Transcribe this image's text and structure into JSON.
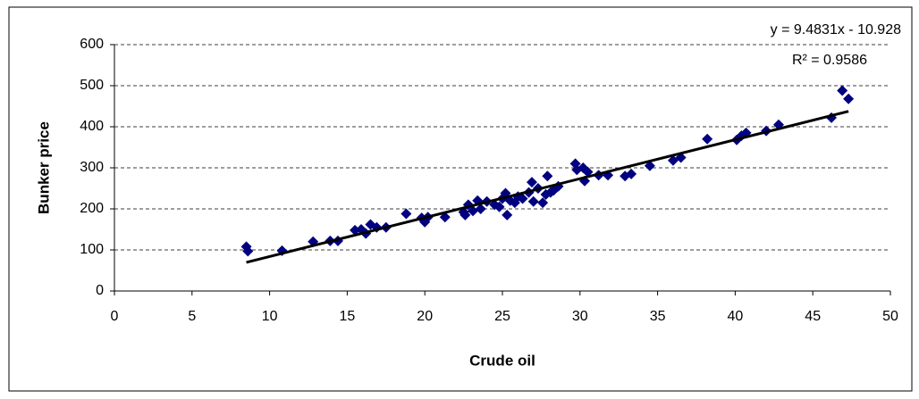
{
  "chart_data": {
    "type": "scatter",
    "x_label": "Crude oil",
    "y_label": "Bunker price",
    "xlim": [
      0,
      50
    ],
    "ylim": [
      0,
      600
    ],
    "xticks": [
      0,
      5,
      10,
      15,
      20,
      25,
      30,
      35,
      40,
      45,
      50
    ],
    "yticks": [
      0,
      100,
      200,
      300,
      400,
      500,
      600
    ],
    "grid": true,
    "color": "#000080",
    "x": [
      8.5,
      8.6,
      10.8,
      12.8,
      13.9,
      14.4,
      15.5,
      15.9,
      16.2,
      16.5,
      16.9,
      17.5,
      18.8,
      19.8,
      20.0,
      20.2,
      21.3,
      22.5,
      22.6,
      22.8,
      23.1,
      23.4,
      23.6,
      24.0,
      24.5,
      24.8,
      25.0,
      25.2,
      25.3,
      25.5,
      25.8,
      26.0,
      26.3,
      26.7,
      26.9,
      27.0,
      27.3,
      27.6,
      27.8,
      27.9,
      28.1,
      28.3,
      28.6,
      29.7,
      29.8,
      30.2,
      30.3,
      30.5,
      31.2,
      31.8,
      32.9,
      33.3,
      34.5,
      36.0,
      36.5,
      38.2,
      40.1,
      40.4,
      40.7,
      42.0,
      42.8,
      46.2,
      46.9,
      47.3
    ],
    "values": [
      108,
      97,
      98,
      120,
      122,
      122,
      148,
      150,
      140,
      162,
      155,
      155,
      188,
      178,
      168,
      180,
      180,
      192,
      185,
      210,
      195,
      220,
      200,
      218,
      210,
      205,
      225,
      238,
      185,
      220,
      215,
      230,
      225,
      240,
      265,
      218,
      250,
      215,
      235,
      280,
      240,
      245,
      255,
      310,
      295,
      300,
      268,
      290,
      282,
      282,
      280,
      285,
      305,
      318,
      325,
      370,
      368,
      378,
      385,
      390,
      405,
      422,
      488,
      468
    ],
    "trendline": {
      "slope": 9.4831,
      "intercept": -10.928,
      "equation": "y = 9.4831x - 10.928",
      "r2": "R² = 0.9586"
    }
  }
}
